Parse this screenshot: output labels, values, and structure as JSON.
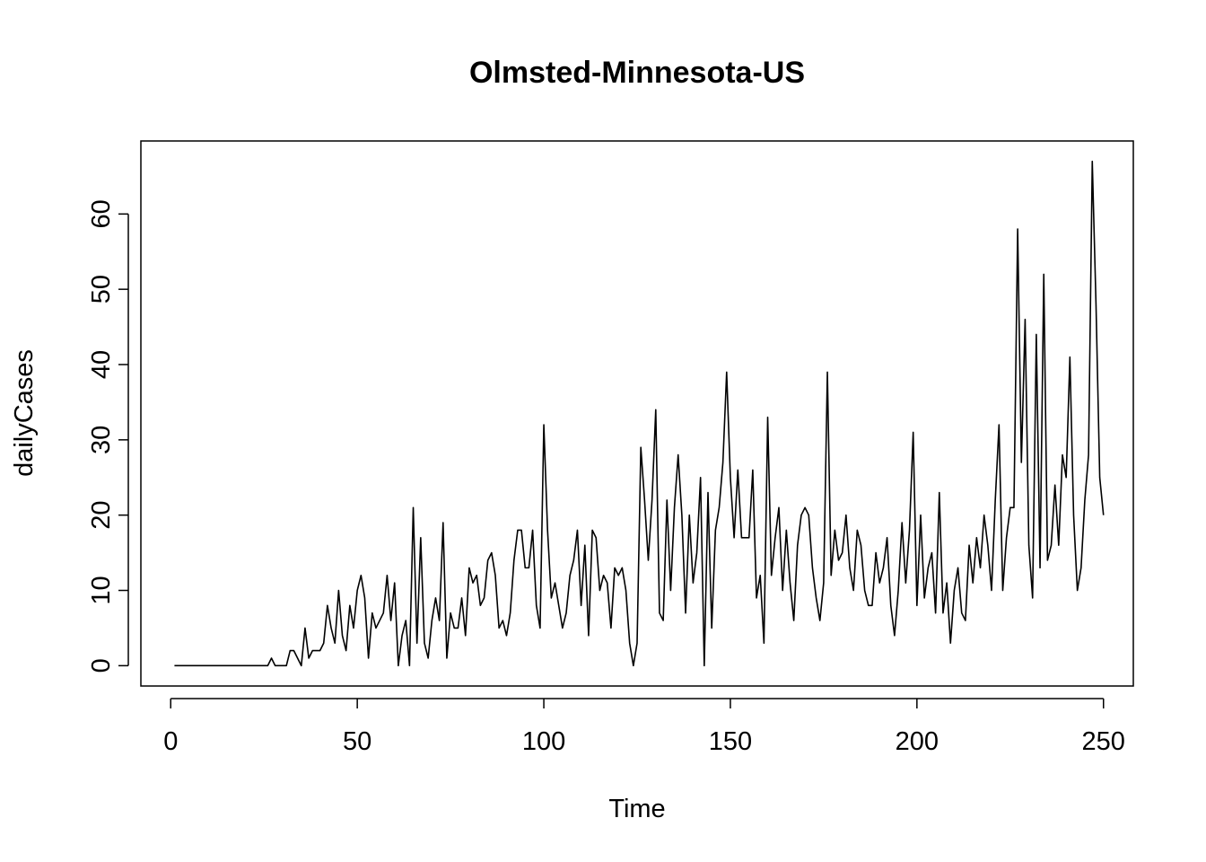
{
  "chart_data": {
    "type": "line",
    "title": "Olmsted-Minnesota-US",
    "xlabel": "Time",
    "ylabel": "dailyCases",
    "xlim": [
      -8,
      258
    ],
    "ylim": [
      -2.7,
      69.7
    ],
    "xticks": [
      0,
      50,
      100,
      150,
      200,
      250
    ],
    "yticks": [
      0,
      10,
      20,
      30,
      40,
      50,
      60
    ],
    "grid": false,
    "legend": "none",
    "line_color": "#000000",
    "x_start": 1,
    "series": [
      {
        "values": [
          0,
          0,
          0,
          0,
          0,
          0,
          0,
          0,
          0,
          0,
          0,
          0,
          0,
          0,
          0,
          0,
          0,
          0,
          0,
          0,
          0,
          0,
          0,
          0,
          0,
          0,
          1,
          0,
          0,
          0,
          0,
          2,
          2,
          1,
          0,
          5,
          1,
          2,
          2,
          2,
          3,
          8,
          5,
          3,
          10,
          4,
          2,
          8,
          5,
          10,
          12,
          9,
          1,
          7,
          5,
          6,
          7,
          12,
          6,
          11,
          0,
          4,
          6,
          0,
          21,
          3,
          17,
          3,
          1,
          6,
          9,
          6,
          19,
          1,
          7,
          5,
          5,
          9,
          4,
          13,
          11,
          12,
          8,
          9,
          14,
          15,
          12,
          5,
          6,
          4,
          7,
          14,
          18,
          18,
          13,
          13,
          18,
          8,
          5,
          32,
          18,
          9,
          11,
          8,
          5,
          7,
          12,
          14,
          18,
          8,
          16,
          4,
          18,
          17,
          10,
          12,
          11,
          5,
          13,
          12,
          13,
          10,
          3,
          0,
          3,
          29,
          22,
          14,
          22,
          34,
          7,
          6,
          22,
          10,
          21,
          28,
          20,
          7,
          20,
          11,
          15,
          25,
          0,
          23,
          5,
          18,
          21,
          27,
          39,
          25,
          17,
          26,
          17,
          17,
          17,
          26,
          9,
          12,
          3,
          33,
          12,
          17,
          21,
          10,
          18,
          11,
          6,
          16,
          20,
          21,
          20,
          13,
          9,
          6,
          11,
          39,
          12,
          18,
          14,
          15,
          20,
          13,
          10,
          18,
          16,
          10,
          8,
          8,
          15,
          11,
          13,
          17,
          8,
          4,
          10,
          19,
          11,
          18,
          31,
          8,
          20,
          9,
          13,
          15,
          7,
          23,
          7,
          11,
          3,
          10,
          13,
          7,
          6,
          16,
          11,
          17,
          13,
          20,
          16,
          10,
          22,
          32,
          10,
          17,
          21,
          21,
          58,
          27,
          46,
          16,
          9,
          44,
          13,
          52,
          14,
          16,
          24,
          16,
          28,
          25,
          41,
          20,
          10,
          13,
          22,
          28,
          67,
          48,
          25,
          20
        ]
      }
    ]
  }
}
